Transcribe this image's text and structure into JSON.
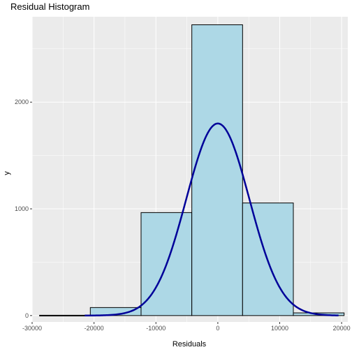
{
  "chart_data": {
    "type": "bar",
    "title": "Residual Histogram",
    "xlabel": "Residuals",
    "ylabel": "y",
    "xlim": [
      -30000,
      21000
    ],
    "ylim": [
      -60,
      2800
    ],
    "x_ticks": [
      -30000,
      -20000,
      -10000,
      0,
      10000,
      20000
    ],
    "x_tick_labels": [
      "-30000",
      "-20000",
      "-10000",
      "0",
      "10000",
      "20000"
    ],
    "y_ticks": [
      0,
      1000,
      2000
    ],
    "y_tick_labels": [
      "0",
      "1000",
      "2000"
    ],
    "grid": true,
    "bins": [
      {
        "x0": -28800,
        "x1": -20600,
        "count": 3
      },
      {
        "x0": -20600,
        "x1": -12400,
        "count": 75
      },
      {
        "x0": -12400,
        "x1": -4200,
        "count": 965
      },
      {
        "x0": -4200,
        "x1": 4000,
        "count": 2725
      },
      {
        "x0": 4000,
        "x1": 12200,
        "count": 1055
      },
      {
        "x0": 12200,
        "x1": 20400,
        "count": 25
      }
    ],
    "density_curve": {
      "type": "line",
      "color": "#000099",
      "x_range": [
        -21500,
        19500
      ],
      "mean": 0,
      "sd": 5100,
      "peak": 1800
    },
    "colors": {
      "bar_fill": "#add8e6",
      "bar_stroke": "#000000",
      "panel_bg": "#ebebeb",
      "grid": "#ffffff",
      "curve": "#000099"
    }
  }
}
